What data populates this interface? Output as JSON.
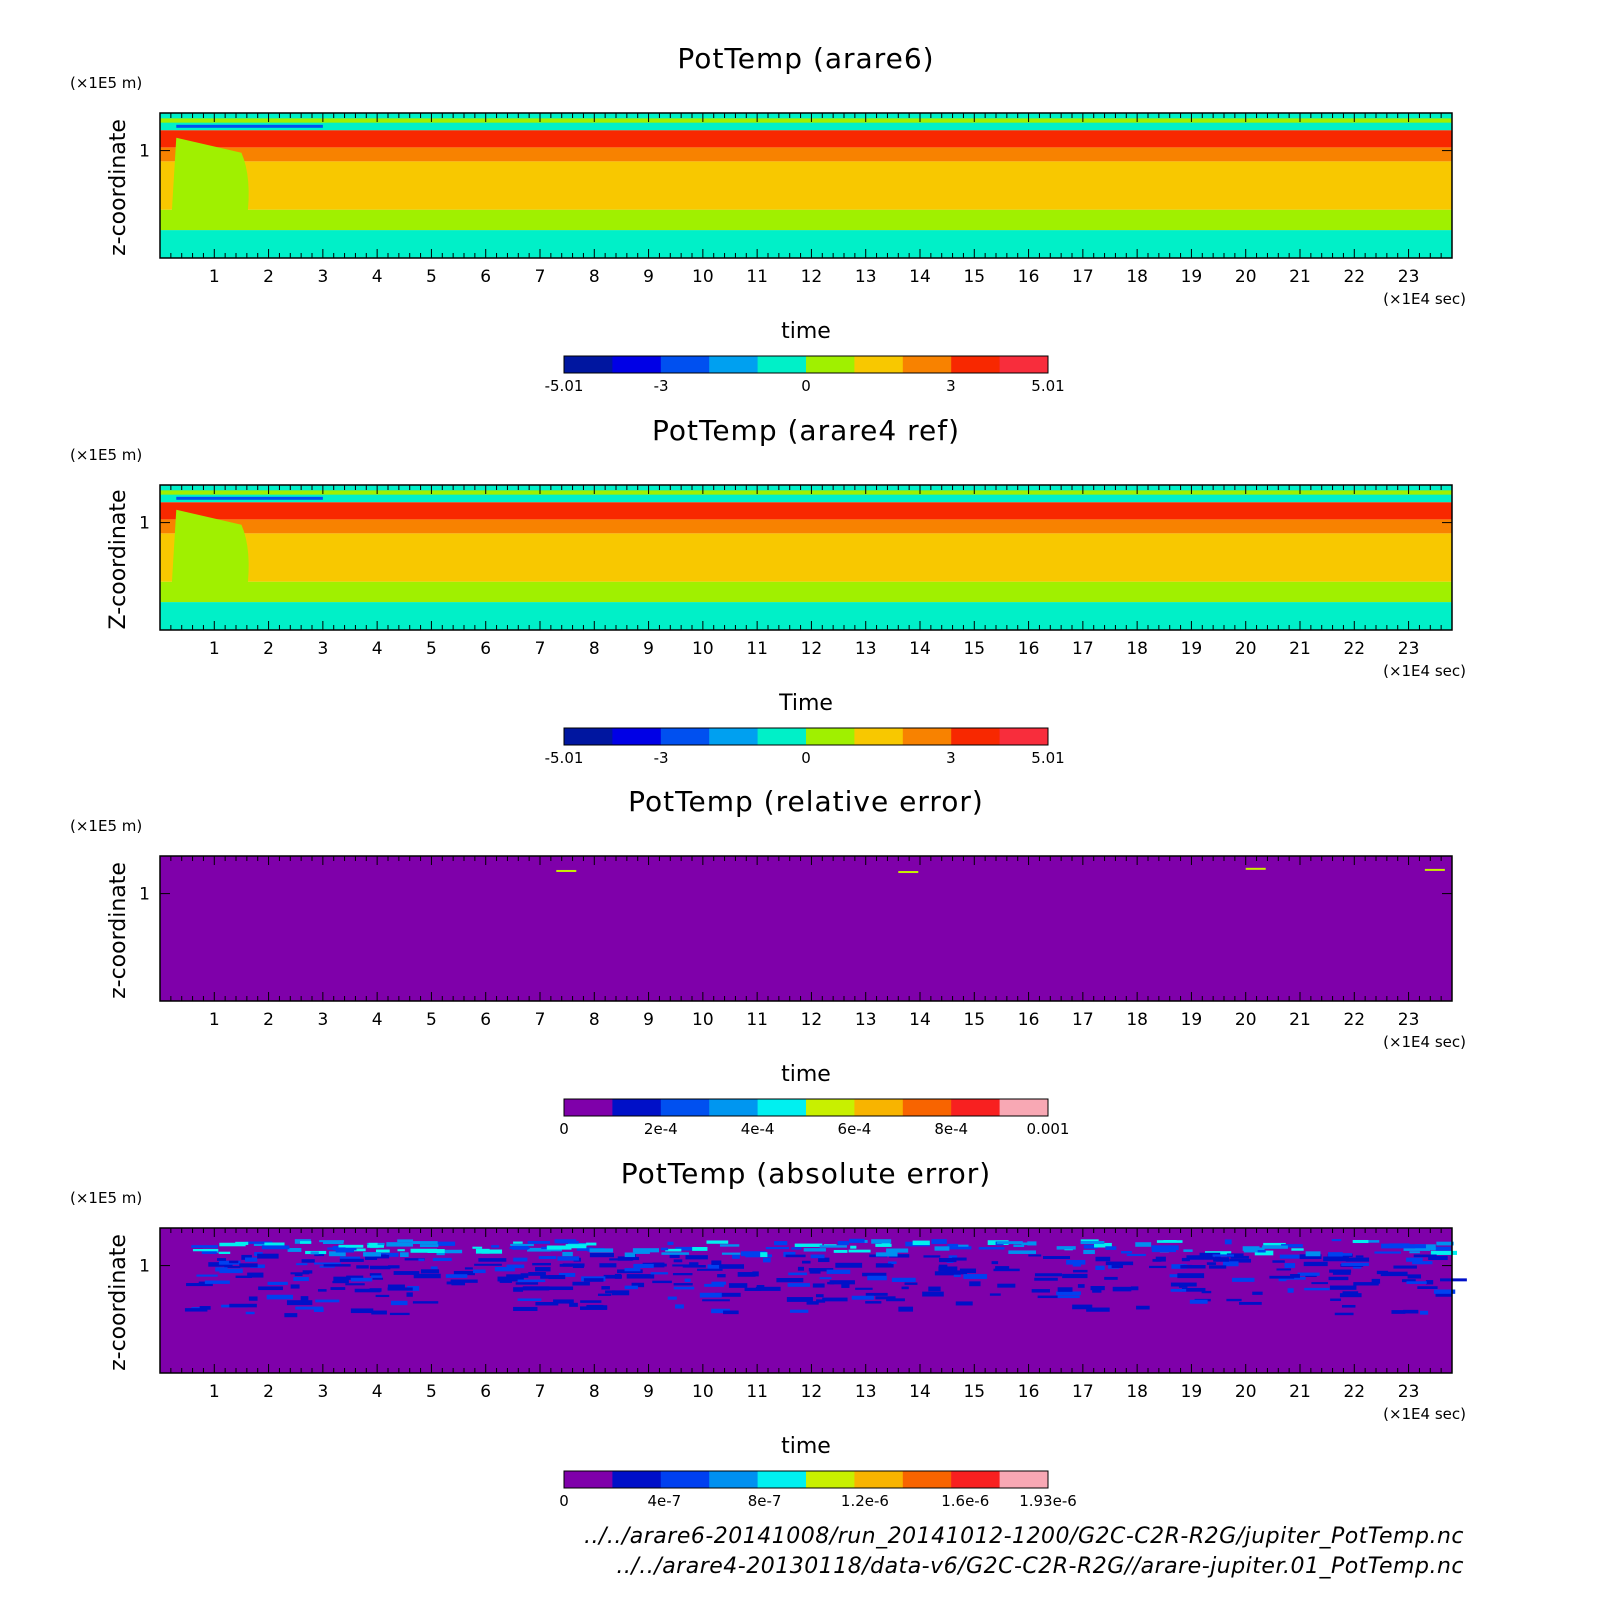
{
  "chart_data": [
    {
      "type": "heatmap",
      "title": "PotTemp (arare6)",
      "ylabel": "z-coordinate",
      "yunit": "(×1E5 m)",
      "yticks": [
        "1"
      ],
      "xlabel": "time",
      "xunit": "(×1E4 sec)",
      "xticks": [
        "1",
        "2",
        "3",
        "4",
        "5",
        "6",
        "7",
        "8",
        "9",
        "10",
        "11",
        "12",
        "13",
        "14",
        "15",
        "16",
        "17",
        "18",
        "19",
        "20",
        "21",
        "22",
        "23"
      ],
      "xlim": [
        0,
        23.8
      ],
      "ylim": [
        0,
        1.35
      ],
      "colorbar": {
        "colors": [
          "#0016a0",
          "#0000e6",
          "#0050f0",
          "#00a0f0",
          "#00f0c8",
          "#a0f000",
          "#f8c800",
          "#f88200",
          "#f82800",
          "#f82d3c"
        ],
        "tick_labels": [
          "-5.01",
          "-3",
          "0",
          "3",
          "5.01"
        ],
        "tick_values": [
          -5.01,
          -3,
          0,
          3,
          5.01
        ],
        "range": [
          -5.01,
          5.01
        ]
      }
    },
    {
      "type": "heatmap",
      "title": "PotTemp (arare4 ref)",
      "ylabel": "Z-coordinate",
      "yunit": "(×1E5 m)",
      "yticks": [
        "1"
      ],
      "xlabel": "Time",
      "xunit": "(×1E4 sec)",
      "xticks": [
        "1",
        "2",
        "3",
        "4",
        "5",
        "6",
        "7",
        "8",
        "9",
        "10",
        "11",
        "12",
        "13",
        "14",
        "15",
        "16",
        "17",
        "18",
        "19",
        "20",
        "21",
        "22",
        "23"
      ],
      "xlim": [
        0,
        23.8
      ],
      "ylim": [
        0,
        1.35
      ],
      "colorbar": {
        "colors": [
          "#0016a0",
          "#0000e6",
          "#0050f0",
          "#00a0f0",
          "#00f0c8",
          "#a0f000",
          "#f8c800",
          "#f88200",
          "#f82800",
          "#f82d3c"
        ],
        "tick_labels": [
          "-5.01",
          "-3",
          "0",
          "3",
          "5.01"
        ],
        "tick_values": [
          -5.01,
          -3,
          0,
          3,
          5.01
        ],
        "range": [
          -5.01,
          5.01
        ]
      }
    },
    {
      "type": "heatmap",
      "title": "PotTemp (relative error)",
      "ylabel": "z-coordinate",
      "yunit": "(×1E5 m)",
      "yticks": [
        "1"
      ],
      "xlabel": "time",
      "xunit": "(×1E4 sec)",
      "xticks": [
        "1",
        "2",
        "3",
        "4",
        "5",
        "6",
        "7",
        "8",
        "9",
        "10",
        "11",
        "12",
        "13",
        "14",
        "15",
        "16",
        "17",
        "18",
        "19",
        "20",
        "21",
        "22",
        "23"
      ],
      "xlim": [
        0,
        23.8
      ],
      "ylim": [
        0,
        1.35
      ],
      "colorbar": {
        "colors": [
          "#7f00aa",
          "#0010c8",
          "#0050f0",
          "#0096f0",
          "#00f0f0",
          "#c8f000",
          "#f8b400",
          "#f86400",
          "#f82020",
          "#f8a8b4"
        ],
        "tick_labels": [
          "0",
          "2e-4",
          "4e-4",
          "6e-4",
          "8e-4",
          "0.001"
        ],
        "tick_values": [
          0,
          0.0002,
          0.0004,
          0.0006,
          0.0008,
          0.001
        ],
        "range": [
          0,
          0.001
        ]
      }
    },
    {
      "type": "heatmap",
      "title": "PotTemp (absolute error)",
      "ylabel": "z-coordinate",
      "yunit": "(×1E5 m)",
      "yticks": [
        "1"
      ],
      "xlabel": "time",
      "xunit": "(×1E4 sec)",
      "xticks": [
        "1",
        "2",
        "3",
        "4",
        "5",
        "6",
        "7",
        "8",
        "9",
        "10",
        "11",
        "12",
        "13",
        "14",
        "15",
        "16",
        "17",
        "18",
        "19",
        "20",
        "21",
        "22",
        "23"
      ],
      "xlim": [
        0,
        23.8
      ],
      "ylim": [
        0,
        1.35
      ],
      "colorbar": {
        "colors": [
          "#7f00aa",
          "#0010c8",
          "#0040f0",
          "#0090f0",
          "#00f0f0",
          "#c8f000",
          "#f8b400",
          "#f86400",
          "#f82020",
          "#f8a8b4"
        ],
        "tick_labels": [
          "0",
          "4e-7",
          "8e-7",
          "1.2e-6",
          "1.6e-6",
          "1.93e-6"
        ],
        "tick_values": [
          0,
          4e-07,
          8e-07,
          1.2e-06,
          1.6e-06,
          1.93e-06
        ],
        "range": [
          0,
          1.93e-06
        ]
      }
    }
  ],
  "footer": {
    "line1": "../../arare6-20141008/run_20141012-1200/G2C-C2R-R2G/jupiter_PotTemp.nc",
    "line2": "../../arare4-20130118/data-v6/G2C-C2R-R2G//arare-jupiter.01_PotTemp.nc"
  }
}
